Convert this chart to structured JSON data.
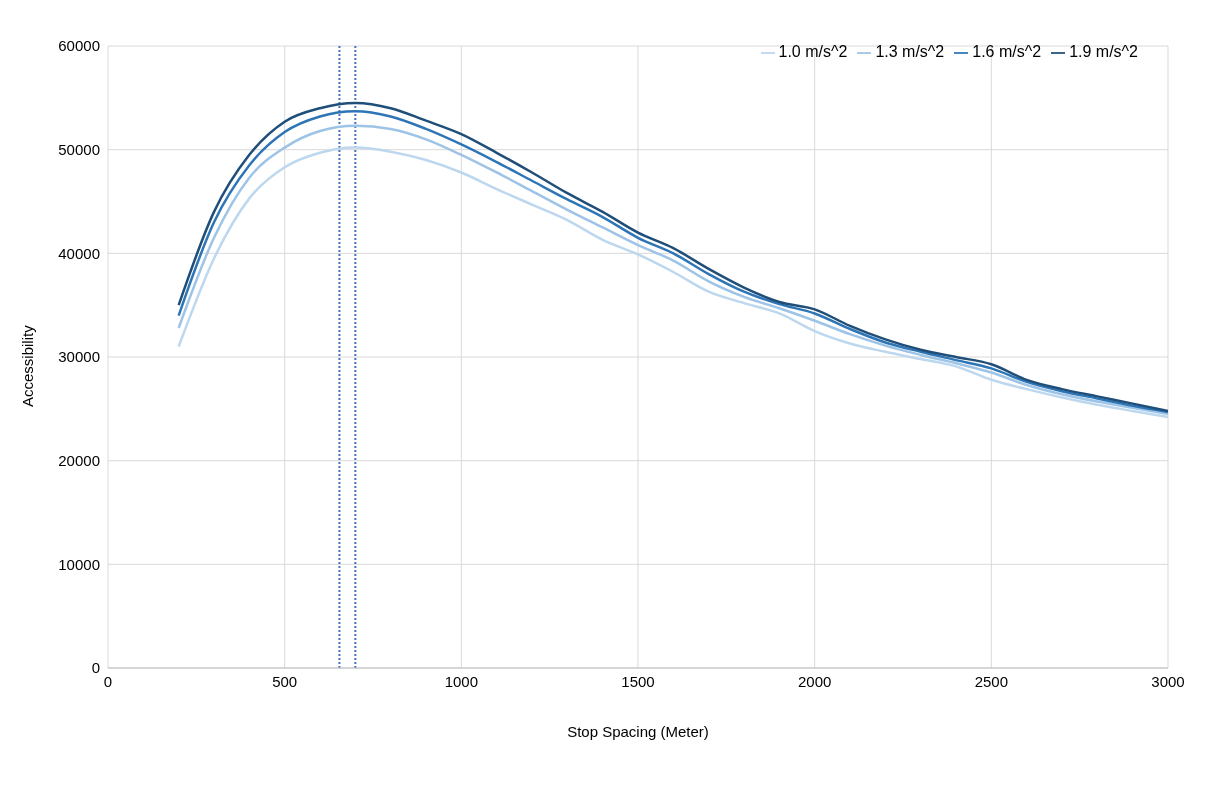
{
  "chart_data": {
    "type": "line",
    "xlabel": "Stop Spacing (Meter)",
    "ylabel": "Accessibility",
    "x": [
      200,
      300,
      400,
      500,
      600,
      700,
      800,
      900,
      1000,
      1100,
      1200,
      1300,
      1400,
      1500,
      1600,
      1700,
      1800,
      1900,
      2000,
      2100,
      2200,
      2300,
      2400,
      2500,
      2600,
      2700,
      2800,
      2900,
      3000
    ],
    "series": [
      {
        "name": "1.0 m/s^2",
        "color": "#bdd7ee",
        "values": [
          31000,
          39500,
          45300,
          48300,
          49700,
          50200,
          49800,
          49000,
          47800,
          46200,
          44700,
          43200,
          41300,
          39900,
          38200,
          36300,
          35200,
          34200,
          32500,
          31300,
          30500,
          29800,
          29100,
          27800,
          26900,
          26100,
          25400,
          24800,
          24200
        ]
      },
      {
        "name": "1.3 m/s^2",
        "color": "#9dc3e6",
        "values": [
          32800,
          41500,
          47300,
          50200,
          51800,
          52300,
          52000,
          51000,
          49500,
          47800,
          46000,
          44200,
          42500,
          40800,
          39300,
          37300,
          35800,
          34700,
          33500,
          32200,
          31100,
          30200,
          29400,
          28500,
          27300,
          26400,
          25700,
          25100,
          24500
        ]
      },
      {
        "name": "1.6 m/s^2",
        "color": "#2e75b6",
        "values": [
          34000,
          43000,
          48500,
          51700,
          53200,
          53700,
          53200,
          52000,
          50500,
          48800,
          47000,
          45200,
          43500,
          41500,
          40000,
          38000,
          36300,
          35100,
          34200,
          32700,
          31400,
          30500,
          29700,
          28900,
          27600,
          26700,
          26000,
          25300,
          24700
        ]
      },
      {
        "name": "1.9 m/s^2",
        "color": "#1f4e79",
        "values": [
          35000,
          44000,
          49500,
          52700,
          54000,
          54500,
          54000,
          52800,
          51500,
          49700,
          47800,
          45800,
          44000,
          42000,
          40500,
          38500,
          36700,
          35300,
          34600,
          33000,
          31700,
          30700,
          30000,
          29300,
          27800,
          26900,
          26200,
          25500,
          24800
        ]
      }
    ],
    "xlim": [
      0,
      3000
    ],
    "xticks": [
      0,
      500,
      1000,
      1500,
      2000,
      2500,
      3000
    ],
    "ylim": [
      0,
      60000
    ],
    "yticks": [
      0,
      10000,
      20000,
      30000,
      40000,
      50000,
      60000
    ],
    "ref_lines": [
      {
        "axis": "x",
        "value": 655,
        "color": "#4472c4",
        "line_style": "dotted"
      },
      {
        "axis": "x",
        "value": 700,
        "color": "#4472c4",
        "line_style": "dotted"
      }
    ],
    "grid": true,
    "legend": "top right",
    "marker": "none",
    "line_style": "solid"
  }
}
